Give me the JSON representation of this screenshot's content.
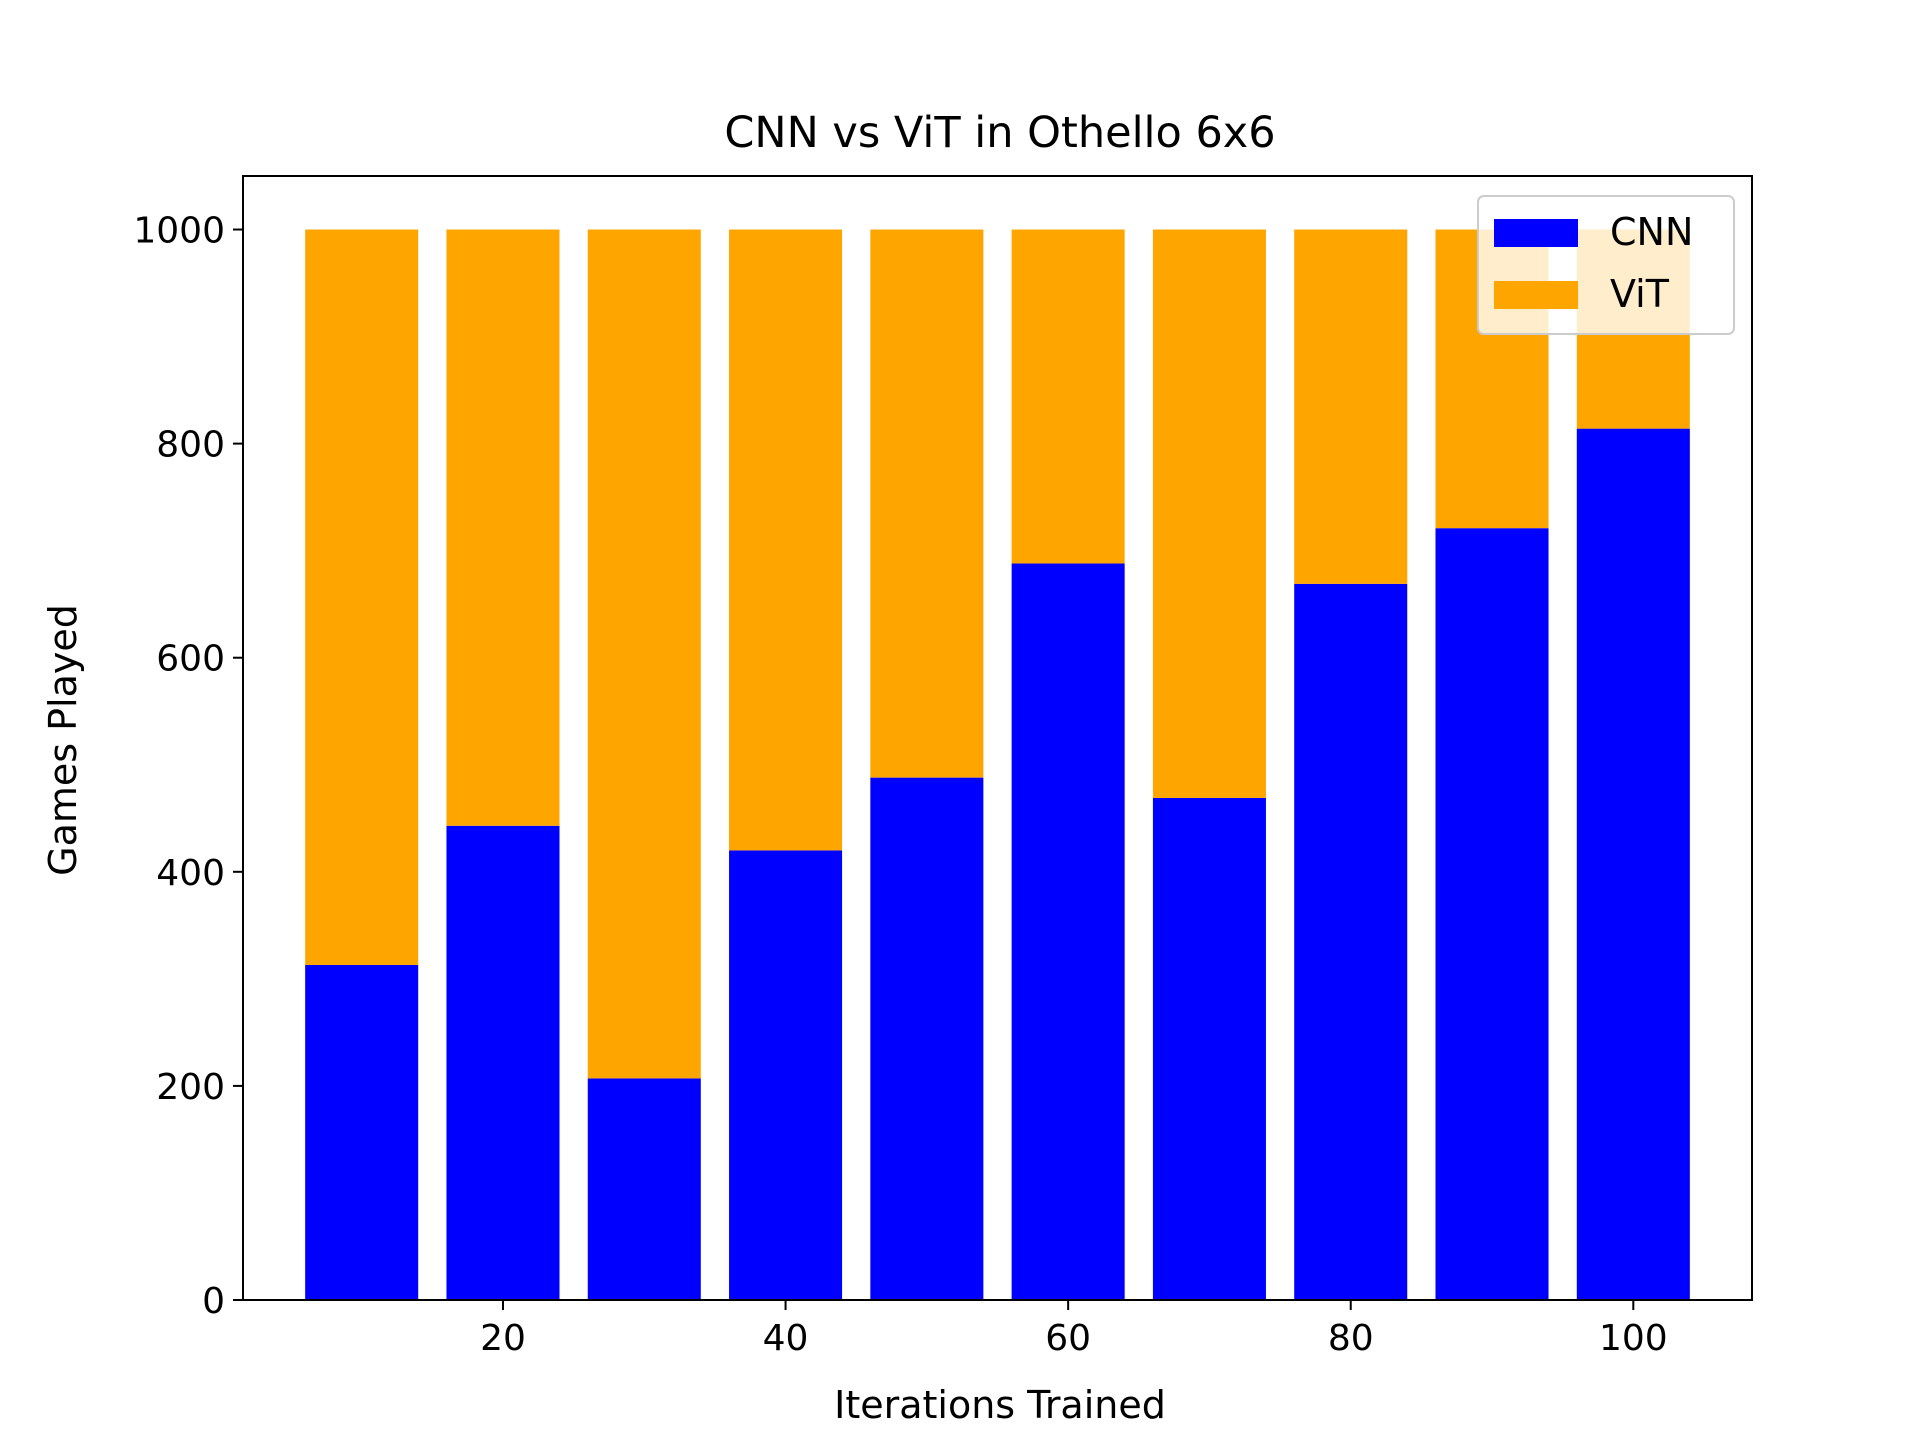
{
  "chart_data": {
    "type": "bar",
    "stacked": true,
    "title": "CNN vs ViT in Othello 6x6",
    "xlabel": "Iterations Trained",
    "ylabel": "Games Played",
    "x": [
      10,
      20,
      30,
      40,
      50,
      60,
      70,
      80,
      90,
      100
    ],
    "bar_width": 8,
    "series": [
      {
        "name": "CNN",
        "color": "#0000ff",
        "values": [
          313,
          443,
          207,
          420,
          488,
          688,
          469,
          669,
          721,
          814
        ]
      },
      {
        "name": "ViT",
        "color": "#ffa500",
        "values": [
          687,
          557,
          793,
          580,
          512,
          312,
          531,
          331,
          279,
          186
        ]
      }
    ],
    "xlim": [
      1.6,
      108.4
    ],
    "ylim": [
      0,
      1050
    ],
    "xticks": [
      20,
      40,
      60,
      80,
      100
    ],
    "yticks": [
      0,
      200,
      400,
      600,
      800,
      1000
    ],
    "grid": false,
    "legend_position": "top-right"
  }
}
